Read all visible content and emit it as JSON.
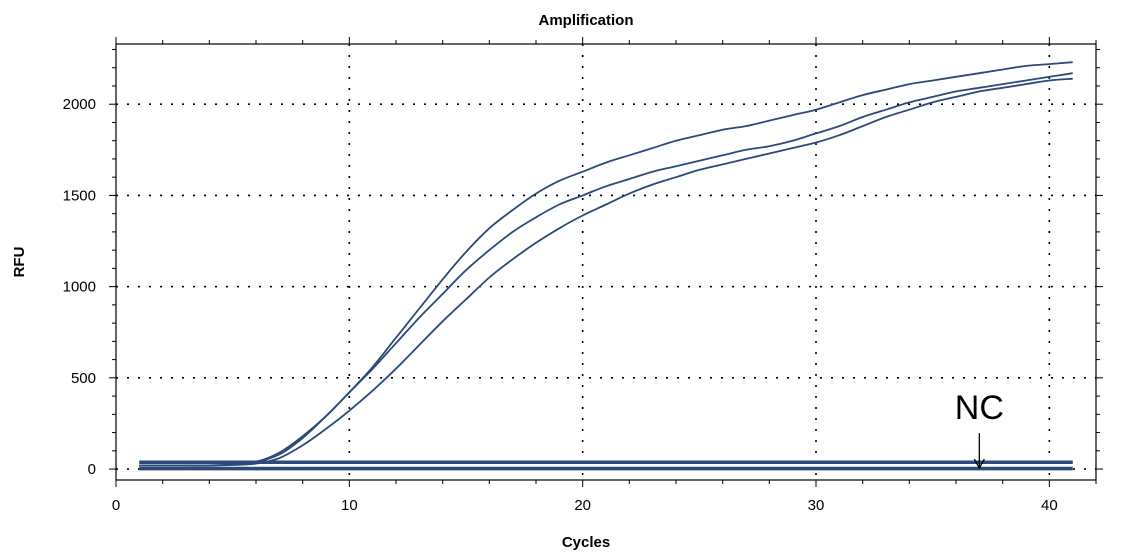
{
  "chart_data": {
    "type": "line",
    "title": "Amplification",
    "xlabel": "Cycles",
    "ylabel": "RFU",
    "xlim": [
      0,
      42
    ],
    "ylim": [
      -60,
      2330
    ],
    "x_ticks": [
      0,
      10,
      20,
      30,
      40
    ],
    "y_ticks": [
      0,
      500,
      1000,
      1500,
      2000
    ],
    "grid": true,
    "line_color": "#2b4a7a",
    "x": [
      1,
      2,
      3,
      4,
      5,
      6,
      7,
      8,
      9,
      10,
      11,
      12,
      13,
      14,
      15,
      16,
      17,
      18,
      19,
      20,
      21,
      22,
      23,
      24,
      25,
      26,
      27,
      28,
      29,
      30,
      31,
      32,
      33,
      34,
      35,
      36,
      37,
      38,
      39,
      40,
      41
    ],
    "series": [
      {
        "values": [
          20,
          20,
          20,
          20,
          25,
          40,
          80,
          170,
          290,
          420,
          560,
          720,
          880,
          1040,
          1190,
          1320,
          1420,
          1510,
          1580,
          1630,
          1680,
          1720,
          1760,
          1800,
          1830,
          1860,
          1880,
          1910,
          1940,
          1970,
          2010,
          2050,
          2080,
          2110,
          2130,
          2150,
          2170,
          2190,
          2210,
          2220,
          2230
        ]
      },
      {
        "values": [
          20,
          20,
          20,
          20,
          25,
          40,
          90,
          180,
          290,
          420,
          550,
          690,
          830,
          960,
          1090,
          1200,
          1300,
          1380,
          1450,
          1500,
          1550,
          1590,
          1630,
          1660,
          1690,
          1720,
          1750,
          1770,
          1800,
          1840,
          1880,
          1930,
          1970,
          2010,
          2040,
          2070,
          2090,
          2110,
          2130,
          2150,
          2170
        ]
      },
      {
        "values": [
          20,
          20,
          20,
          20,
          22,
          30,
          60,
          130,
          220,
          320,
          430,
          550,
          680,
          810,
          930,
          1050,
          1150,
          1240,
          1320,
          1390,
          1450,
          1510,
          1560,
          1600,
          1640,
          1670,
          1700,
          1730,
          1760,
          1790,
          1830,
          1880,
          1930,
          1970,
          2010,
          2040,
          2070,
          2090,
          2110,
          2130,
          2140
        ]
      },
      {
        "values": [
          40,
          40,
          40,
          40,
          40,
          40,
          40,
          40,
          40,
          40,
          40,
          40,
          40,
          40,
          40,
          40,
          40,
          40,
          40,
          40,
          40,
          40,
          40,
          40,
          40,
          40,
          40,
          40,
          40,
          40,
          40,
          40,
          40,
          40,
          40,
          40,
          40,
          40,
          40,
          40,
          40
        ]
      },
      {
        "values": [
          35,
          35,
          35,
          35,
          35,
          35,
          35,
          35,
          35,
          35,
          35,
          35,
          35,
          35,
          35,
          35,
          35,
          35,
          35,
          35,
          35,
          35,
          35,
          35,
          35,
          35,
          35,
          35,
          35,
          35,
          35,
          35,
          35,
          35,
          35,
          35,
          35,
          35,
          35,
          35,
          35
        ]
      },
      {
        "values": [
          5,
          5,
          5,
          5,
          5,
          5,
          5,
          5,
          5,
          5,
          5,
          5,
          5,
          5,
          5,
          5,
          5,
          5,
          5,
          5,
          5,
          5,
          5,
          5,
          5,
          5,
          5,
          5,
          5,
          5,
          5,
          5,
          5,
          5,
          5,
          5,
          5,
          5,
          5,
          5,
          5
        ]
      },
      {
        "values": [
          0,
          0,
          0,
          0,
          0,
          0,
          0,
          0,
          0,
          0,
          0,
          0,
          0,
          0,
          0,
          0,
          0,
          0,
          0,
          0,
          0,
          0,
          0,
          0,
          0,
          0,
          0,
          0,
          0,
          0,
          0,
          0,
          0,
          0,
          0,
          0,
          0,
          0,
          0,
          0,
          0
        ]
      }
    ],
    "annotations": [
      {
        "text": "NC",
        "arrow_to": [
          37,
          0
        ]
      }
    ]
  }
}
